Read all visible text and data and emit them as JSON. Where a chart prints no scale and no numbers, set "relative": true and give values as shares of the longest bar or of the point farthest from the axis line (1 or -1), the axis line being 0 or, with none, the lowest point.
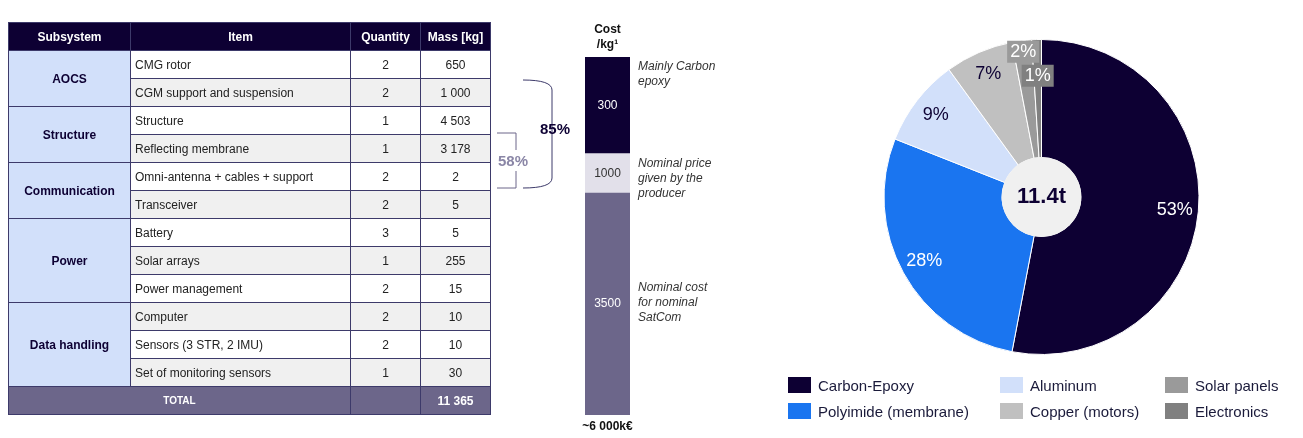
{
  "chart_data": [
    {
      "type": "other",
      "categories": [
        "Subsystem",
        "Item",
        "Quantity",
        "Mass [kg]"
      ],
      "y_categories": [
        "CMG rotor",
        "CGM support and suspension",
        "Structure",
        "Reflecting membrane",
        "Omni-antenna + cables + support",
        "Transceiver",
        "Battery",
        "Solar arrays",
        "Power management",
        "Computer",
        "Sensors (3 STR, 2 IMU)",
        "Set of monitoring sensors",
        null
      ],
      "y2_categories": [
        "AOCS",
        null,
        "Structure",
        null,
        "Communication",
        null,
        "Power",
        null,
        null,
        "Data handling",
        null,
        null,
        "TOTAL"
      ],
      "cell_labels": [
        [
          "2",
          "650"
        ],
        [
          "2",
          "1 000"
        ],
        [
          "1",
          "4 503"
        ],
        [
          "1",
          "3 178"
        ],
        [
          "2",
          "2"
        ],
        [
          "2",
          "5"
        ],
        [
          "3",
          "5"
        ],
        [
          "1",
          "255"
        ],
        [
          "2",
          "15"
        ],
        [
          "2",
          "10"
        ],
        [
          "2",
          "10"
        ],
        [
          "1",
          "30"
        ],
        [
          null,
          "11 365"
        ]
      ],
      "annotations": [
        "85%",
        "58%"
      ]
    },
    {
      "type": "bar",
      "title": "Cost /kg¹",
      "categories": [
        null
      ],
      "stacked": true,
      "relative": true,
      "series": [
        {
          "name": "3500",
          "color": "#6c668a",
          "values": [
            0.62
          ]
        },
        {
          "name": "1000",
          "color": "#e2e0ea",
          "values": [
            0.11
          ]
        },
        {
          "name": "300",
          "color": "#0d0033",
          "values": [
            0.27
          ]
        }
      ],
      "annotations": [
        "Mainly Carbon epoxy",
        "Nominal price given by the producer",
        "Nominal cost for nominal SatCom",
        "~6 000k€"
      ]
    },
    {
      "type": "donut",
      "categories": [
        "Carbon-Epoxy",
        "Polyimide (membrane)",
        "Aluminum",
        "Copper (motors)",
        "Solar panels",
        "Electronics"
      ],
      "values": [
        53,
        28,
        9,
        7,
        2,
        1
      ],
      "colors": [
        "#0d0033",
        "#1a75f0",
        "#d2e0fa",
        "#c0c0c0",
        "#9a9a9a",
        "#808080"
      ],
      "value_labels": [
        "53%",
        "28%",
        "9%",
        "7%",
        "2%",
        "1%"
      ],
      "legend": "bottom",
      "annotations": [
        "11.4t"
      ]
    }
  ]
}
